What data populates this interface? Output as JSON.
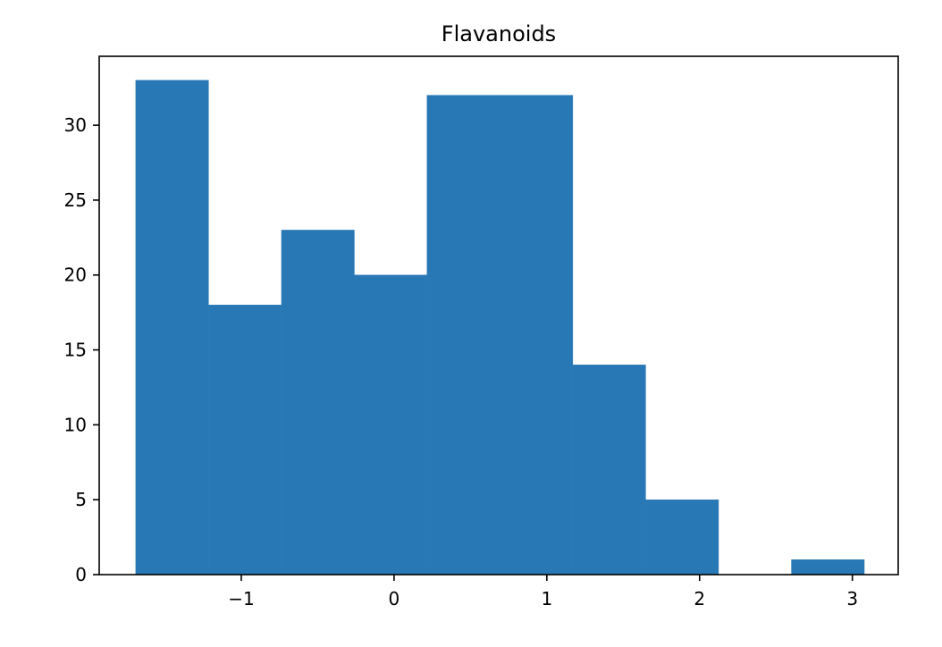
{
  "chart_data": {
    "type": "bar",
    "title": "Flavanoids",
    "xlabel": "",
    "ylabel": "",
    "bin_edges": [
      -1.691,
      -1.214,
      -0.737,
      -0.26,
      0.216,
      0.693,
      1.17,
      1.647,
      2.124,
      2.601,
      3.078
    ],
    "values": [
      33,
      18,
      23,
      20,
      32,
      32,
      14,
      5,
      0,
      1
    ],
    "xlim": [
      -1.93,
      3.3
    ],
    "ylim": [
      0,
      34.6
    ],
    "xticks": [
      -1,
      0,
      1,
      2,
      3
    ],
    "xtick_labels": [
      "−1",
      "0",
      "1",
      "2",
      "3"
    ],
    "yticks": [
      0,
      5,
      10,
      15,
      20,
      25,
      30
    ],
    "ytick_labels": [
      "0",
      "5",
      "10",
      "15",
      "20",
      "25",
      "30"
    ],
    "grid": false,
    "bar_color": "#2878b5"
  }
}
